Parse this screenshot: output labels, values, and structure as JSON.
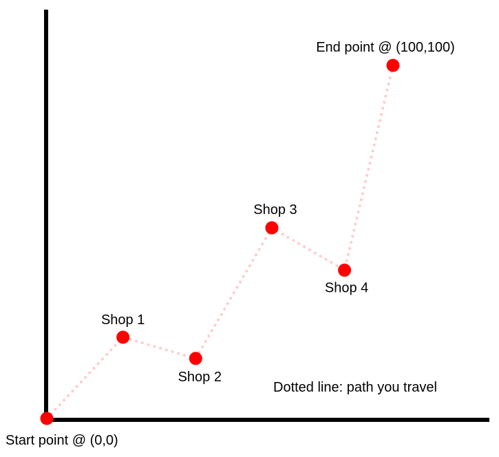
{
  "colors": {
    "point": "#ff0000",
    "path": "#ffcccc",
    "axis": "#000000",
    "text": "#000000",
    "background": "#ffffff"
  },
  "points": [
    {
      "id": "start",
      "label": "Start point @ (0,0)",
      "x": 0,
      "y": 0
    },
    {
      "id": "shop-1",
      "label": "Shop 1",
      "x": 22,
      "y": 23
    },
    {
      "id": "shop-2",
      "label": "Shop 2",
      "x": 43,
      "y": 17
    },
    {
      "id": "shop-3",
      "label": "Shop 3",
      "x": 65,
      "y": 54
    },
    {
      "id": "shop-4",
      "label": "Shop 4",
      "x": 86,
      "y": 42
    },
    {
      "id": "end",
      "label": "End point @ (100,100)",
      "x": 100,
      "y": 100
    }
  ],
  "legend_note": "Dotted line: path you travel"
}
